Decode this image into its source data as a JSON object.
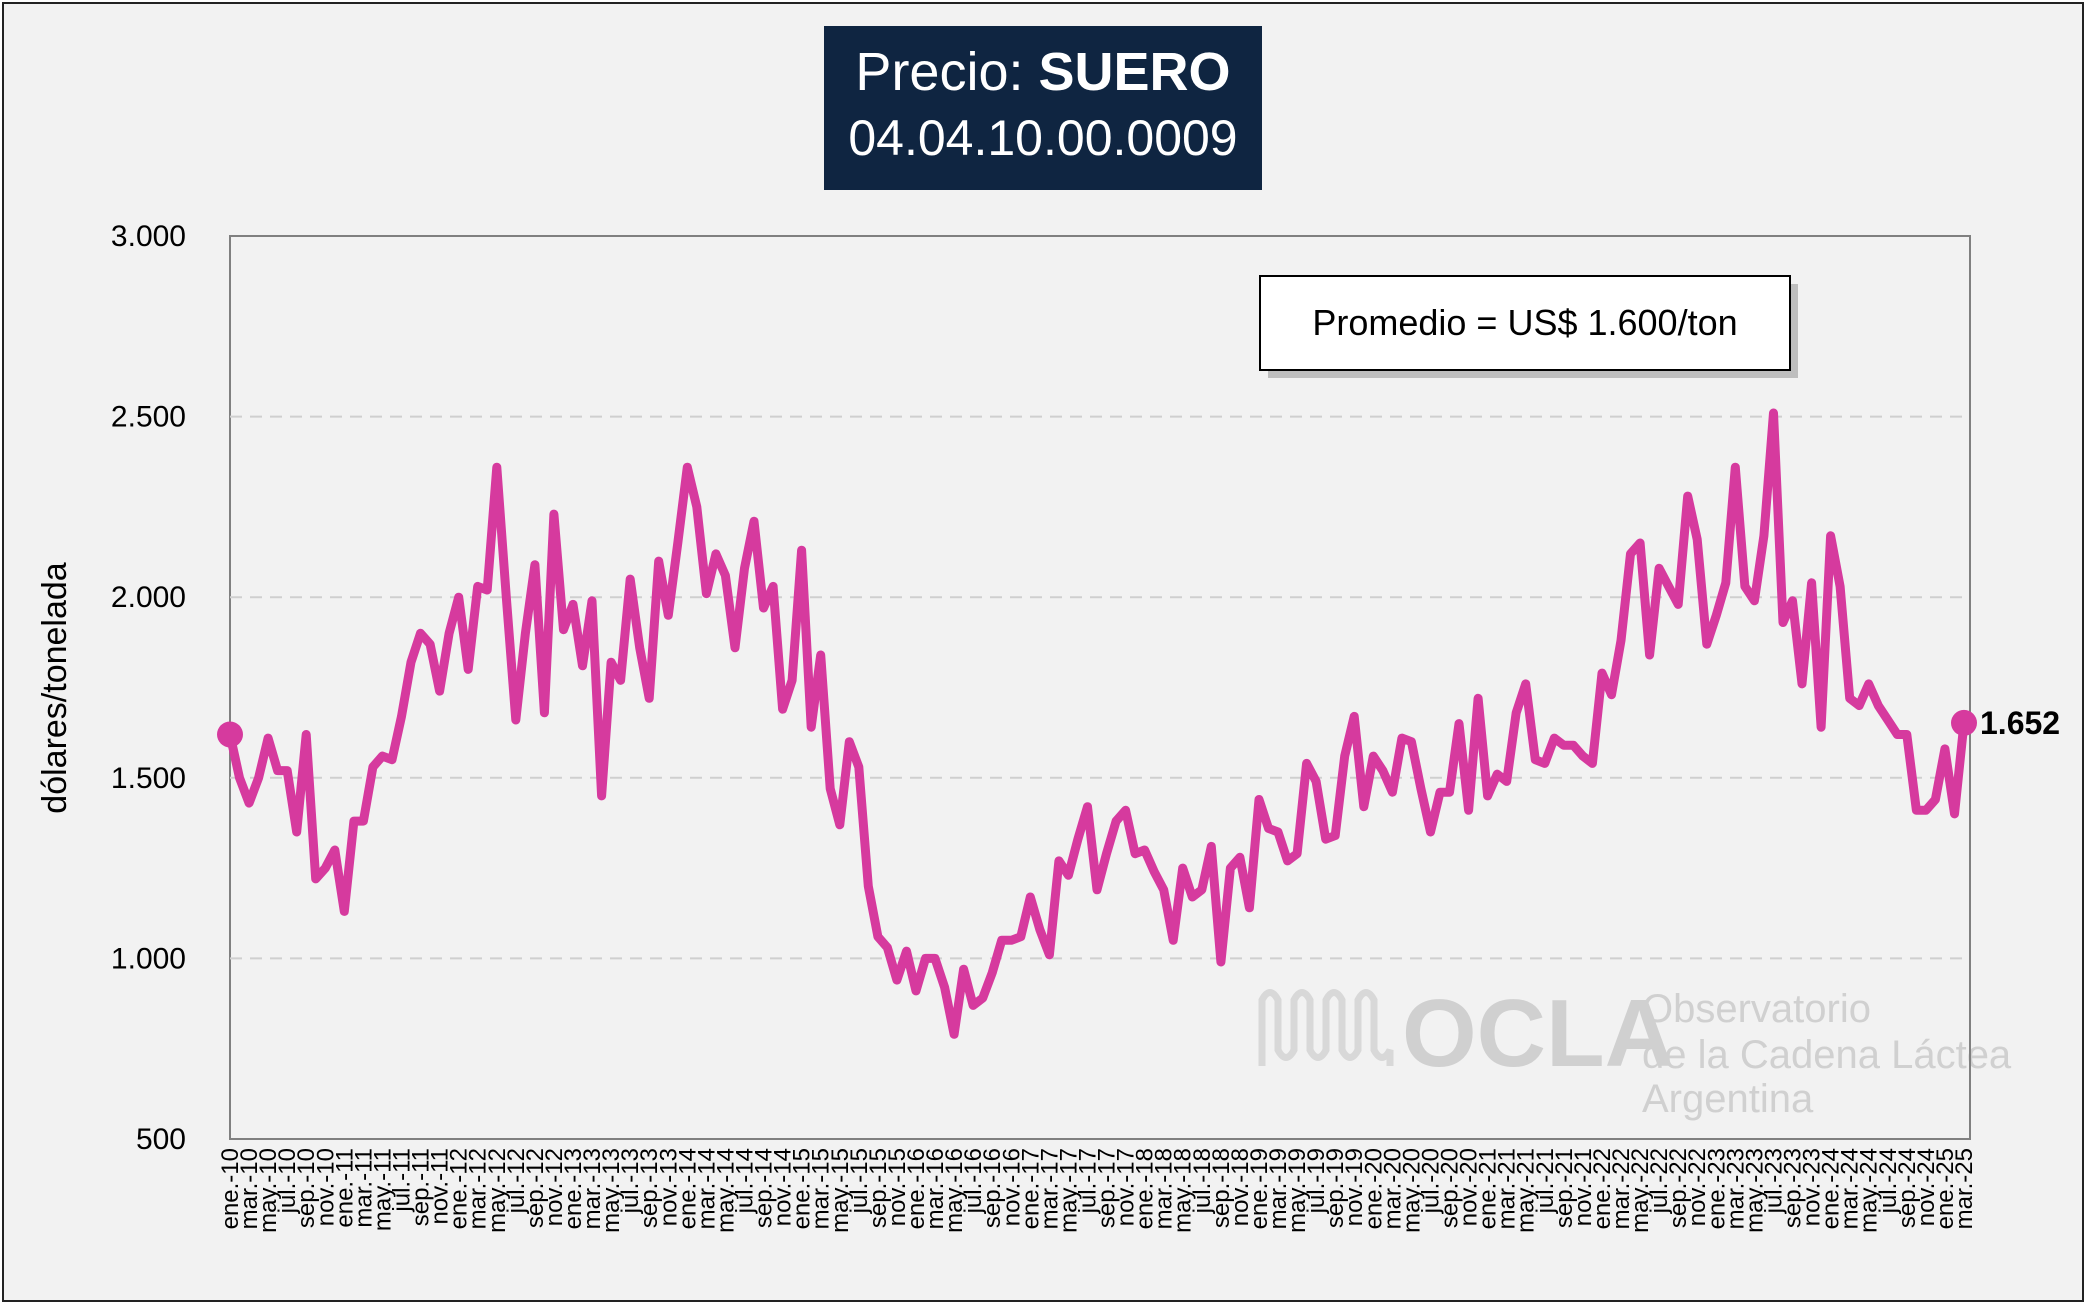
{
  "title": {
    "prefix": "Precio:",
    "bold": "SUERO",
    "code": "04.04.10.00.0009"
  },
  "watermark": {
    "logo": "OCLA",
    "line1": "Observatorio",
    "line2": "de la Cadena Láctea",
    "line3": "Argentina"
  },
  "chart_data": {
    "type": "line",
    "ylabel": "dólares/tonelada",
    "ylim": [
      500,
      3000
    ],
    "yticks": [
      "500",
      "1.000",
      "1.500",
      "2.000",
      "2.500",
      "3.000"
    ],
    "grid": "horizontal-dashed",
    "annotation": "Promedio = US$ 1.600/ton",
    "end_label": "1.652",
    "color": "#d63a9e",
    "x": [
      "ene.-10",
      "feb.-10",
      "mar.-10",
      "abr.-10",
      "may.-10",
      "jun.-10",
      "jul.-10",
      "ago.-10",
      "sep.-10",
      "oct.-10",
      "nov.-10",
      "dic.-10",
      "ene.-11",
      "feb.-11",
      "mar.-11",
      "abr.-11",
      "may.-11",
      "jun.-11",
      "jul.-11",
      "ago.-11",
      "sep.-11",
      "oct.-11",
      "nov.-11",
      "dic.-11",
      "ene.-12",
      "feb.-12",
      "mar.-12",
      "abr.-12",
      "may.-12",
      "jun.-12",
      "jul.-12",
      "ago.-12",
      "sep.-12",
      "oct.-12",
      "nov.-12",
      "dic.-12",
      "ene.-13",
      "feb.-13",
      "mar.-13",
      "abr.-13",
      "may.-13",
      "jun.-13",
      "jul.-13",
      "ago.-13",
      "sep.-13",
      "oct.-13",
      "nov.-13",
      "dic.-13",
      "ene.-14",
      "feb.-14",
      "mar.-14",
      "abr.-14",
      "may.-14",
      "jun.-14",
      "jul.-14",
      "ago.-14",
      "sep.-14",
      "oct.-14",
      "nov.-14",
      "dic.-14",
      "ene.-15",
      "feb.-15",
      "mar.-15",
      "abr.-15",
      "may.-15",
      "jun.-15",
      "jul.-15",
      "ago.-15",
      "sep.-15",
      "oct.-15",
      "nov.-15",
      "dic.-15",
      "ene.-16",
      "feb.-16",
      "mar.-16",
      "abr.-16",
      "may.-16",
      "jun.-16",
      "jul.-16",
      "ago.-16",
      "sep.-16",
      "oct.-16",
      "nov.-16",
      "dic.-16",
      "ene.-17",
      "feb.-17",
      "mar.-17",
      "abr.-17",
      "may.-17",
      "jun.-17",
      "jul.-17",
      "ago.-17",
      "sep.-17",
      "oct.-17",
      "nov.-17",
      "dic.-17",
      "ene.-18",
      "feb.-18",
      "mar.-18",
      "abr.-18",
      "may.-18",
      "jun.-18",
      "jul.-18",
      "ago.-18",
      "sep.-18",
      "oct.-18",
      "nov.-18",
      "dic.-18",
      "ene.-19",
      "feb.-19",
      "mar.-19",
      "abr.-19",
      "may.-19",
      "jun.-19",
      "jul.-19",
      "ago.-19",
      "sep.-19",
      "oct.-19",
      "nov.-19",
      "dic.-19",
      "ene.-20",
      "feb.-20",
      "mar.-20",
      "abr.-20",
      "may.-20",
      "jun.-20",
      "jul.-20",
      "ago.-20",
      "sep.-20",
      "oct.-20",
      "nov.-20",
      "dic.-20",
      "ene.-21",
      "feb.-21",
      "mar.-21",
      "abr.-21",
      "may.-21",
      "jun.-21",
      "jul.-21",
      "ago.-21",
      "sep.-21",
      "oct.-21",
      "nov.-21",
      "dic.-21",
      "ene.-22",
      "feb.-22",
      "mar.-22",
      "abr.-22",
      "may.-22",
      "jun.-22",
      "jul.-22",
      "ago.-22",
      "sep.-22",
      "oct.-22",
      "nov.-22",
      "dic.-22",
      "ene.-23",
      "feb.-23",
      "mar.-23",
      "abr.-23",
      "may.-23",
      "jun.-23",
      "jul.-23",
      "ago.-23",
      "sep.-23",
      "oct.-23",
      "nov.-23",
      "dic.-23",
      "ene.-24",
      "feb.-24",
      "mar.-24",
      "abr.-24",
      "may.-24",
      "jun.-24",
      "jul.-24",
      "ago.-24",
      "sep.-24",
      "oct.-24",
      "nov.-24",
      "dic.-24",
      "ene.-25",
      "feb.-25",
      "mar.-25"
    ],
    "values": [
      1620,
      1500,
      1430,
      1500,
      1610,
      1520,
      1520,
      1350,
      1620,
      1220,
      1250,
      1300,
      1130,
      1380,
      1380,
      1530,
      1560,
      1550,
      1670,
      1820,
      1900,
      1870,
      1740,
      1900,
      2000,
      1800,
      2030,
      2020,
      2360,
      2000,
      1660,
      1900,
      2090,
      1680,
      2230,
      1910,
      1980,
      1810,
      1990,
      1450,
      1820,
      1770,
      2050,
      1860,
      1720,
      2100,
      1950,
      2150,
      2360,
      2250,
      2010,
      2120,
      2060,
      1860,
      2080,
      2210,
      1970,
      2030,
      1690,
      1770,
      2130,
      1640,
      1840,
      1470,
      1370,
      1600,
      1530,
      1200,
      1060,
      1030,
      940,
      1020,
      910,
      1000,
      1000,
      920,
      790,
      970,
      870,
      890,
      960,
      1050,
      1050,
      1060,
      1170,
      1080,
      1010,
      1270,
      1230,
      1330,
      1420,
      1190,
      1290,
      1380,
      1410,
      1290,
      1300,
      1240,
      1190,
      1050,
      1250,
      1170,
      1190,
      1310,
      990,
      1250,
      1280,
      1140,
      1440,
      1360,
      1350,
      1270,
      1290,
      1540,
      1490,
      1330,
      1340,
      1560,
      1670,
      1420,
      1560,
      1520,
      1460,
      1610,
      1600,
      1470,
      1350,
      1460,
      1460,
      1650,
      1410,
      1720,
      1450,
      1510,
      1490,
      1680,
      1760,
      1550,
      1540,
      1610,
      1590,
      1590,
      1560,
      1540,
      1790,
      1730,
      1880,
      2120,
      2150,
      1840,
      2080,
      2030,
      1980,
      2280,
      2160,
      1870,
      1950,
      2040,
      2360,
      2030,
      1990,
      2170,
      2510,
      1930,
      1990,
      1760,
      2040,
      1640,
      2170,
      2030,
      1720,
      1700,
      1760,
      1700,
      1660,
      1620,
      1620,
      1410,
      1410,
      1440,
      1580,
      1400,
      1652
    ]
  }
}
